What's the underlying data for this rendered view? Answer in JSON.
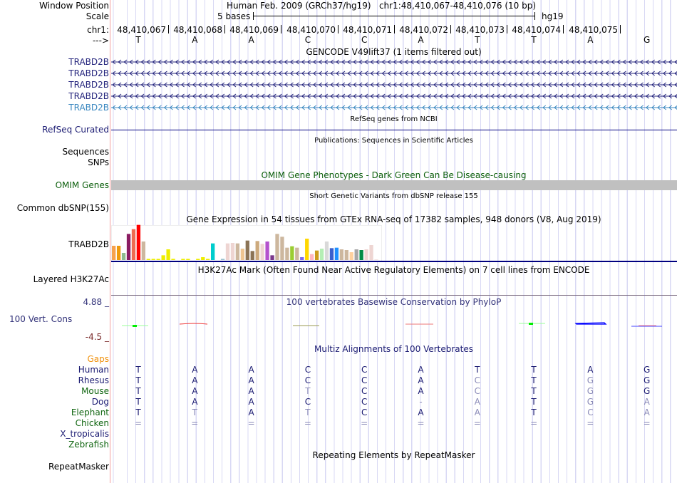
{
  "header": {
    "window_position_label": "Window Position",
    "scale_label": "Scale",
    "chr_label": "chr1:",
    "strand_label": "--->",
    "position_text": "Human Feb. 2009 (GRCh37/hg19)   chr1:48,410,067-48,410,076 (10 bp)",
    "scale_text": "5 bases",
    "assembly": "hg19",
    "coords": [
      "48,410,067",
      "48,410,068",
      "48,410,069",
      "48,410,070",
      "48,410,071",
      "48,410,072",
      "48,410,073",
      "48,410,074",
      "48,410,075"
    ],
    "bases": [
      "T",
      "A",
      "A",
      "C",
      "C",
      "A",
      "T",
      "T",
      "A",
      "G"
    ]
  },
  "tracks": {
    "gencode": {
      "title": "GENCODE V49lift37 (1 items filtered out)",
      "genes": [
        "TRABD2B",
        "TRABD2B",
        "TRABD2B",
        "TRABD2B",
        "TRABD2B"
      ],
      "colors": [
        "#25257d",
        "#25257d",
        "#25257d",
        "#25257d",
        "#3b88c0"
      ]
    },
    "refseq": {
      "title": "RefSeq genes from NCBI",
      "label": "RefSeq Curated"
    },
    "publications": {
      "title": "Publications: Sequences in Scientific Articles",
      "labels": [
        "Sequences",
        "SNPs"
      ]
    },
    "omim": {
      "title": "OMIM Gene Phenotypes - Dark Green Can Be Disease-causing",
      "label": "OMIM Genes"
    },
    "dbsnp": {
      "title": "Short Genetic Variants from dbSNP release 155",
      "label": "Common dbSNP(155)"
    },
    "gtex": {
      "title": "Gene Expression in 54 tissues from GTEx RNA-seq of 17382 samples, 948 donors (V8, Aug 2019)",
      "label": "TRABD2B"
    },
    "h3k27ac": {
      "title": "H3K27Ac Mark (Often Found Near Active Regulatory Elements) on 7 cell lines from ENCODE",
      "label": "Layered H3K27Ac"
    },
    "phylop": {
      "title": "100 vertebrates Basewise Conservation by PhyloP",
      "label": "100 Vert. Cons",
      "max": "4.88 _",
      "min": "-4.5 _"
    },
    "multiz": {
      "title": "Multiz Alignments of 100 Vertebrates",
      "gaps_label": "Gaps",
      "species": [
        {
          "name": "Human",
          "color": "#1a1a72",
          "seq": "TAACCATTAG"
        },
        {
          "name": "Rhesus",
          "color": "#1a1a72",
          "seq": "TAACCACTGG"
        },
        {
          "name": "Mouse",
          "color": "#116611",
          "seq": "TAATCACTGG"
        },
        {
          "name": "Dog",
          "color": "#1a1a72",
          "seq": "TAACC-ATGA"
        },
        {
          "name": "Elephant",
          "color": "#116611",
          "seq": "TTATCAATCA"
        },
        {
          "name": "Chicken",
          "color": "#116611",
          "seq": "=========="
        },
        {
          "name": "X_tropicalis",
          "color": "#1a1a72",
          "seq": ""
        },
        {
          "name": "Zebrafish",
          "color": "#116611",
          "seq": ""
        }
      ]
    },
    "repeatmasker": {
      "title": "Repeating Elements by RepeatMasker",
      "label": "RepeatMasker"
    }
  },
  "chart_data": {
    "type": "bar",
    "title": "Gene Expression in 54 tissues from GTEx RNA-seq of 17382 samples, 948 donors (V8, Aug 2019)",
    "values_relative": [
      60,
      60,
      30,
      110,
      130,
      148,
      78,
      5,
      5,
      5,
      20,
      45,
      5,
      0,
      5,
      5,
      0,
      5,
      12,
      5,
      70,
      0,
      5,
      70,
      72,
      70,
      48,
      82,
      38,
      80,
      68,
      78,
      20,
      110,
      98,
      52,
      58,
      52,
      12,
      90,
      25,
      40,
      48,
      78,
      50,
      52,
      45,
      42,
      33,
      45,
      42,
      45,
      63,
      2
    ],
    "colors": [
      "#f7a24f",
      "#ef9a0d",
      "#8fbc8f",
      "#8b1c62",
      "#ee6a50",
      "#ff0000",
      "#cdb79e",
      "#eeee00",
      "#eeee00",
      "#eeee00",
      "#eeee00",
      "#eeee00",
      "#eeee00",
      "#eeee00",
      "#eeee00",
      "#eeee00",
      "#eeee00",
      "#eeee00",
      "#eeee00",
      "#eeee00",
      "#00cdcd",
      "#9ac0cd",
      "#9ac0cd",
      "#eed5d2",
      "#eed5d2",
      "#cdb79e",
      "#eec591",
      "#8b7355",
      "#8b7355",
      "#cdaa7d",
      "#eed5d2",
      "#b452cd",
      "#7a378b",
      "#cdb79e",
      "#cdb79e",
      "#cdb79e",
      "#9acd32",
      "#cdb79e",
      "#7b68ee",
      "#ffd700",
      "#ffb6c1",
      "#cd9b1d",
      "#b4eeb4",
      "#d9d9d9",
      "#3a5fcd",
      "#1e90ff",
      "#cdb79e",
      "#cdb79e",
      "#fed19e",
      "#a6a6a6",
      "#008b45",
      "#eed5d2",
      "#eed5d2",
      "#eed5d2"
    ]
  },
  "colors": {
    "grid": "#d8d8f4",
    "separator": "#f4a0a0",
    "navy": "#000080",
    "omim_bar": "#c0c0c0",
    "light_base": "#8a8ab8"
  }
}
